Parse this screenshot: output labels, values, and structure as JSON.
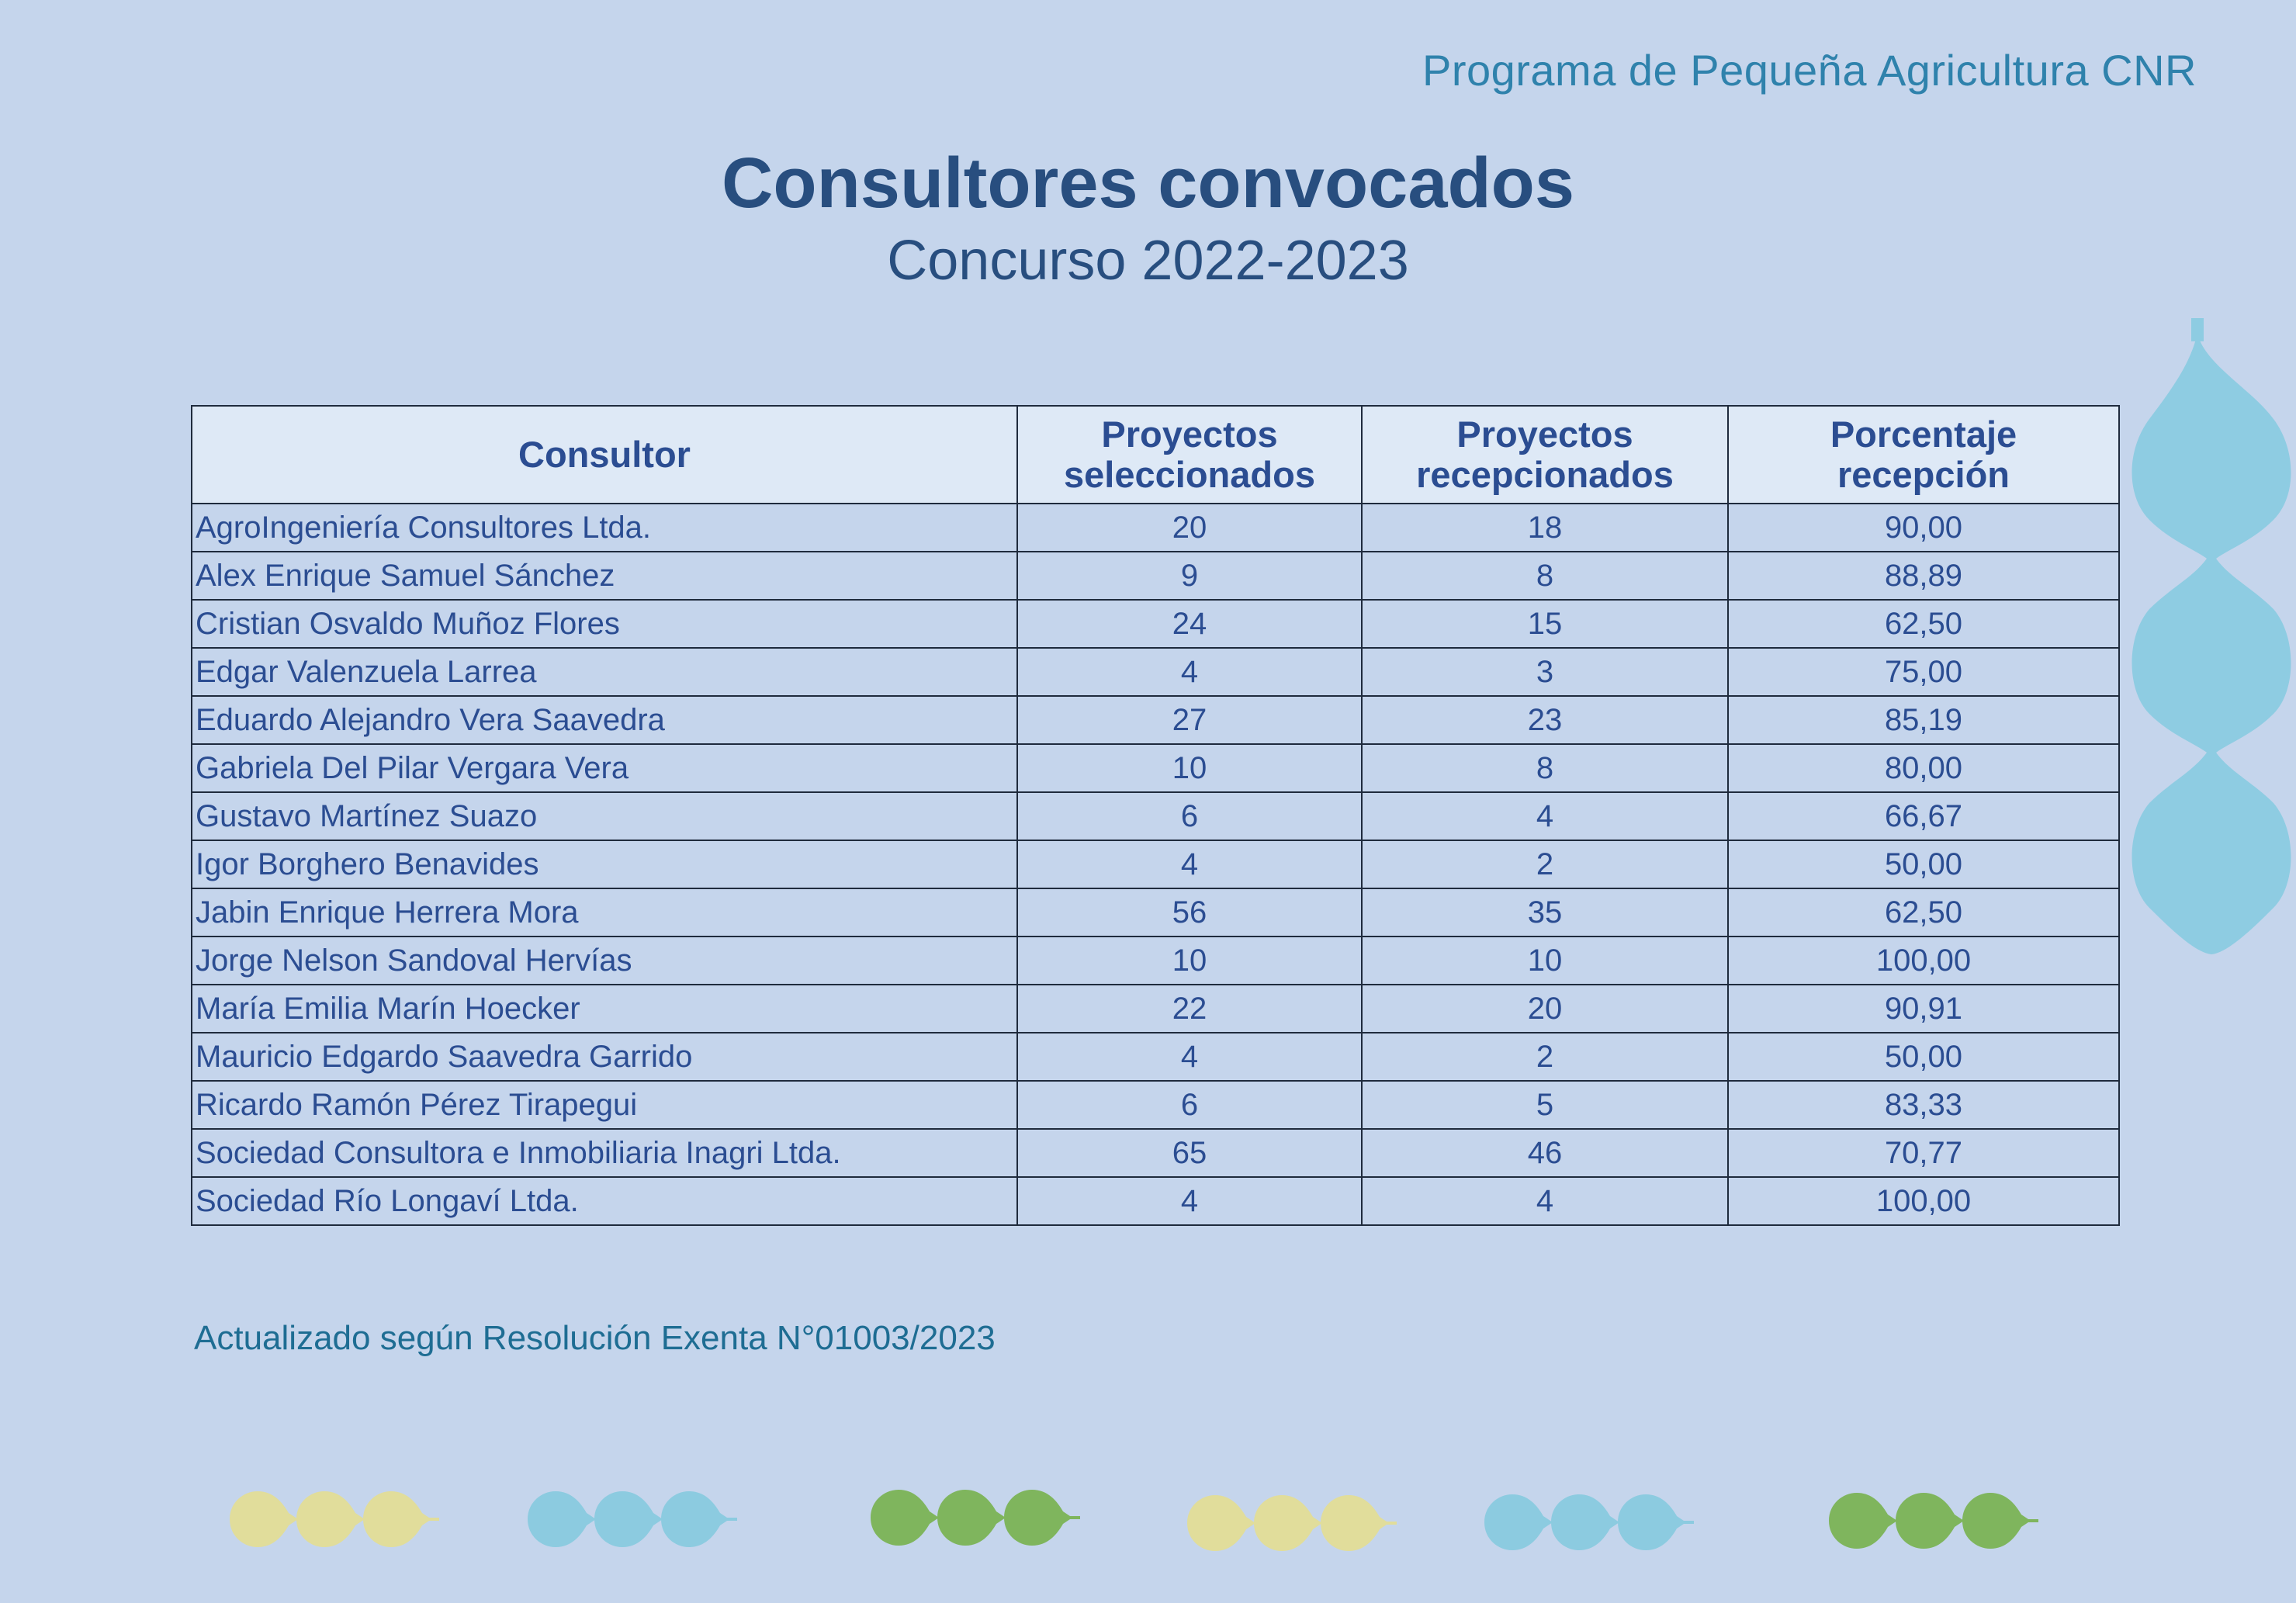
{
  "header": {
    "program": "Programa de Pequeña Agricultura CNR",
    "title": "Consultores convocados",
    "subtitle": "Concurso 2022-2023"
  },
  "table": {
    "columns": [
      {
        "line1": "Consultor",
        "line2": ""
      },
      {
        "line1": "Proyectos",
        "line2": "seleccionados"
      },
      {
        "line1": "Proyectos",
        "line2": "recepcionados"
      },
      {
        "line1": "Porcentaje",
        "line2": "recepción"
      }
    ],
    "rows": [
      {
        "name": "AgroIngeniería Consultores Ltda.",
        "selected": "20",
        "received": "18",
        "percent": "90,00"
      },
      {
        "name": "Alex Enrique Samuel Sánchez",
        "selected": "9",
        "received": "8",
        "percent": "88,89"
      },
      {
        "name": "Cristian Osvaldo Muñoz Flores",
        "selected": "24",
        "received": "15",
        "percent": "62,50"
      },
      {
        "name": "Edgar Valenzuela Larrea",
        "selected": "4",
        "received": "3",
        "percent": "75,00"
      },
      {
        "name": "Eduardo Alejandro Vera Saavedra",
        "selected": "27",
        "received": "23",
        "percent": "85,19"
      },
      {
        "name": "Gabriela Del Pilar Vergara Vera",
        "selected": "10",
        "received": "8",
        "percent": "80,00"
      },
      {
        "name": "Gustavo Martínez Suazo",
        "selected": "6",
        "received": "4",
        "percent": "66,67"
      },
      {
        "name": "Igor Borghero Benavides",
        "selected": "4",
        "received": "2",
        "percent": "50,00"
      },
      {
        "name": "Jabin Enrique Herrera Mora",
        "selected": "56",
        "received": "35",
        "percent": "62,50"
      },
      {
        "name": "Jorge Nelson Sandoval Hervías",
        "selected": "10",
        "received": "10",
        "percent": "100,00"
      },
      {
        "name": "María Emilia Marín Hoecker",
        "selected": "22",
        "received": "20",
        "percent": "90,91"
      },
      {
        "name": "Mauricio Edgardo Saavedra Garrido",
        "selected": "4",
        "received": "2",
        "percent": "50,00"
      },
      {
        "name": "Ricardo Ramón Pérez Tirapegui",
        "selected": "6",
        "received": "5",
        "percent": "83,33"
      },
      {
        "name": "Sociedad Consultora e Inmobiliaria Inagri Ltda.",
        "selected": "65",
        "received": "46",
        "percent": "70,77"
      },
      {
        "name": "Sociedad Río Longaví Ltda.",
        "selected": "4",
        "received": "4",
        "percent": "100,00"
      }
    ]
  },
  "footnote": "Actualizado según Resolución Exenta N°01003/2023",
  "decor": {
    "colors": {
      "yellow": "#e1dd9b",
      "blue": "#8ccbe0",
      "green": "#7fb55d",
      "side_blue": "#8ecce2"
    },
    "bottom_groups": [
      "yellow",
      "blue",
      "green",
      "yellow",
      "blue",
      "green"
    ]
  }
}
